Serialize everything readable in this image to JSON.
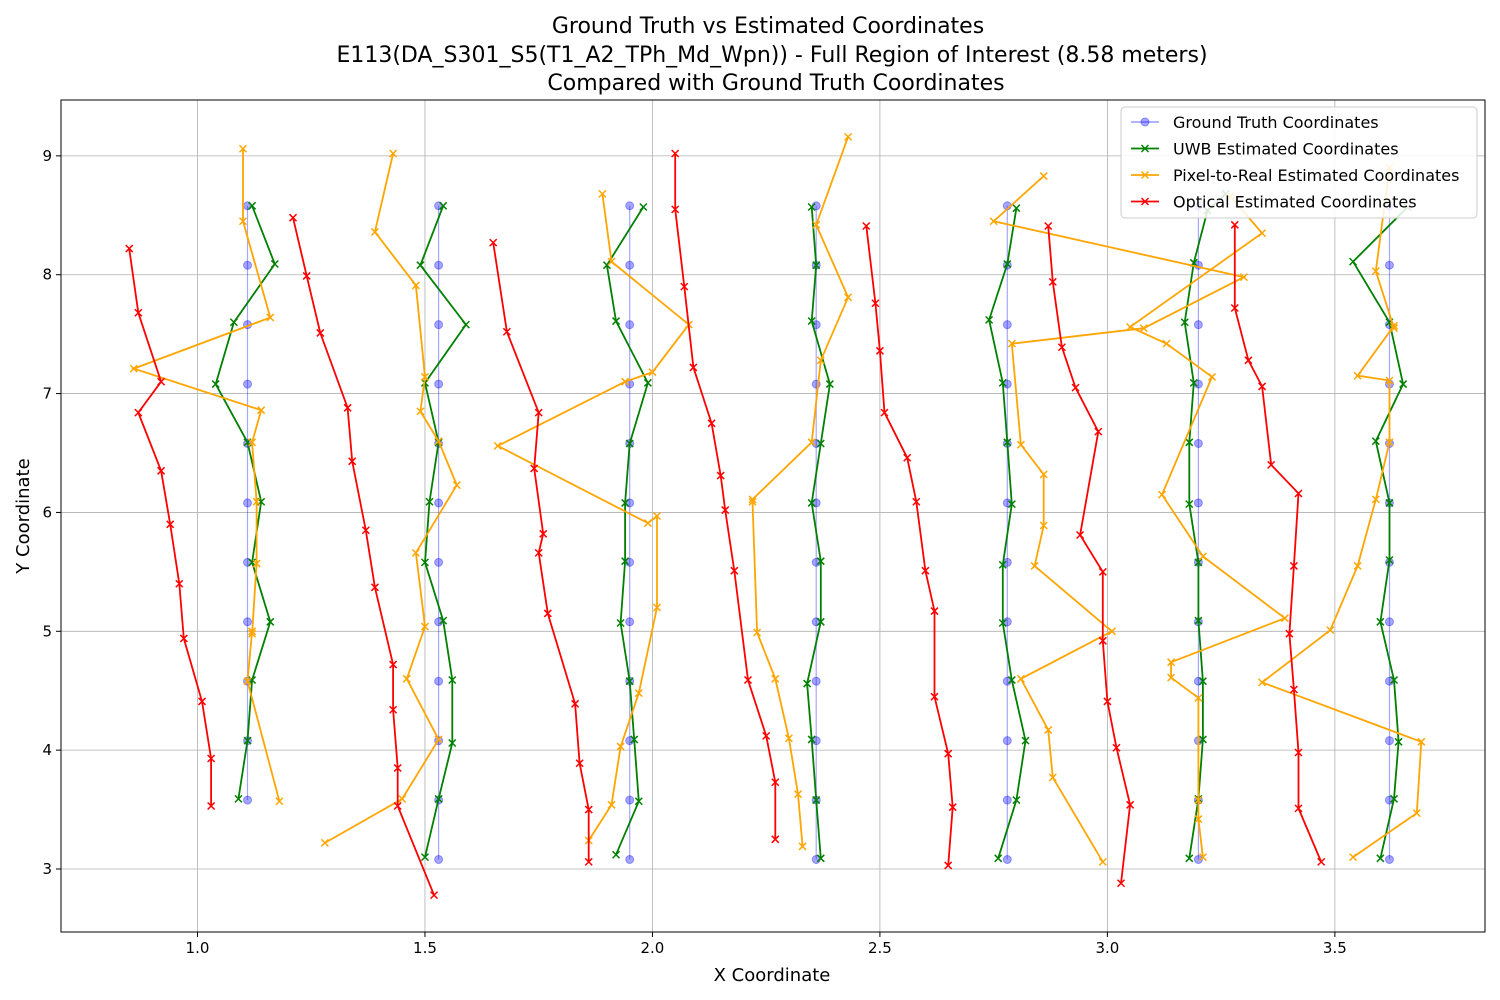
{
  "chart_data": {
    "type": "line",
    "title_lines": [
      "Ground Truth vs Estimated Coordinates",
      "E113(DA_S301_S5(T1_A2_TPh_Md_Wpn)) - Full Region of Interest (8.58 meters)",
      "Compared with Ground Truth Coordinates"
    ],
    "xlabel": "X Coordinate",
    "ylabel": "Y Coordinate",
    "xlim": [
      0.7,
      3.83
    ],
    "ylim": [
      2.47,
      9.47
    ],
    "xticks": [
      1.0,
      1.5,
      2.0,
      2.5,
      3.0,
      3.5
    ],
    "xtick_labels": [
      "1.0",
      "1.5",
      "2.0",
      "2.5",
      "3.0",
      "3.5"
    ],
    "yticks": [
      3,
      4,
      5,
      6,
      7,
      8,
      9
    ],
    "ytick_labels": [
      "3",
      "4",
      "5",
      "6",
      "7",
      "8",
      "9"
    ],
    "grid": true,
    "legend_position": "top-right",
    "series": [
      {
        "name": "Ground Truth Coordinates",
        "color": "#0000ff",
        "marker": "circle",
        "alpha": 0.35,
        "tracks": [
          {
            "x": [
              1.11,
              1.11,
              1.11,
              1.11,
              1.11,
              1.11,
              1.11,
              1.11,
              1.11,
              1.11,
              1.11
            ],
            "y": [
              3.58,
              4.08,
              4.58,
              5.08,
              5.58,
              6.08,
              6.58,
              7.08,
              7.58,
              8.08,
              8.58
            ]
          },
          {
            "x": [
              1.53,
              1.53,
              1.53,
              1.53,
              1.53,
              1.53,
              1.53,
              1.53,
              1.53,
              1.53,
              1.53,
              1.53
            ],
            "y": [
              3.08,
              3.58,
              4.08,
              4.58,
              5.08,
              5.58,
              6.08,
              6.58,
              7.08,
              7.58,
              8.08,
              8.58
            ]
          },
          {
            "x": [
              1.95,
              1.95,
              1.95,
              1.95,
              1.95,
              1.95,
              1.95,
              1.95,
              1.95,
              1.95,
              1.95,
              1.95
            ],
            "y": [
              3.08,
              3.58,
              4.08,
              4.58,
              5.08,
              5.58,
              6.08,
              6.58,
              7.08,
              7.58,
              8.08,
              8.58
            ]
          },
          {
            "x": [
              2.36,
              2.36,
              2.36,
              2.36,
              2.36,
              2.36,
              2.36,
              2.36,
              2.36,
              2.36,
              2.36,
              2.36
            ],
            "y": [
              3.08,
              3.58,
              4.08,
              4.58,
              5.08,
              5.58,
              6.08,
              6.58,
              7.08,
              7.58,
              8.08,
              8.58
            ]
          },
          {
            "x": [
              2.78,
              2.78,
              2.78,
              2.78,
              2.78,
              2.78,
              2.78,
              2.78,
              2.78,
              2.78,
              2.78,
              2.78
            ],
            "y": [
              3.08,
              3.58,
              4.08,
              4.58,
              5.08,
              5.58,
              6.08,
              6.58,
              7.08,
              7.58,
              8.08,
              8.58
            ]
          },
          {
            "x": [
              3.2,
              3.2,
              3.2,
              3.2,
              3.2,
              3.2,
              3.2,
              3.2,
              3.2,
              3.2,
              3.2,
              3.2
            ],
            "y": [
              3.08,
              3.58,
              4.08,
              4.58,
              5.08,
              5.58,
              6.08,
              6.58,
              7.08,
              7.58,
              8.08,
              8.58
            ]
          },
          {
            "x": [
              3.62,
              3.62,
              3.62,
              3.62,
              3.62,
              3.62,
              3.62,
              3.62,
              3.62,
              3.62,
              3.62,
              3.62
            ],
            "y": [
              3.08,
              3.58,
              4.08,
              4.58,
              5.08,
              5.58,
              6.08,
              6.58,
              7.08,
              7.58,
              8.08,
              8.58
            ]
          }
        ]
      },
      {
        "name": "UWB Estimated Coordinates",
        "color": "#008000",
        "marker": "x",
        "alpha": 1,
        "tracks": [
          {
            "x": [
              1.09,
              1.11,
              1.12,
              1.16,
              1.12,
              1.14,
              1.11,
              1.04,
              1.08,
              1.17,
              1.12
            ],
            "y": [
              3.59,
              4.08,
              4.59,
              5.08,
              5.58,
              6.09,
              6.59,
              7.08,
              7.6,
              8.09,
              8.58
            ]
          },
          {
            "x": [
              1.5,
              1.53,
              1.56,
              1.56,
              1.54,
              1.5,
              1.51,
              1.53,
              1.5,
              1.59,
              1.49,
              1.54
            ],
            "y": [
              3.1,
              3.59,
              4.06,
              4.59,
              5.09,
              5.58,
              6.09,
              6.59,
              7.09,
              7.58,
              8.08,
              8.58
            ]
          },
          {
            "x": [
              1.92,
              1.97,
              1.96,
              1.95,
              1.93,
              1.94,
              1.94,
              1.95,
              1.99,
              1.92,
              1.9,
              1.98
            ],
            "y": [
              3.12,
              3.57,
              4.09,
              4.58,
              5.07,
              5.59,
              6.08,
              6.58,
              7.09,
              7.61,
              8.08,
              8.57
            ]
          },
          {
            "x": [
              2.37,
              2.36,
              2.35,
              2.34,
              2.37,
              2.37,
              2.35,
              2.37,
              2.39,
              2.35,
              2.36,
              2.35
            ],
            "y": [
              3.09,
              3.58,
              4.09,
              4.56,
              5.08,
              5.59,
              6.08,
              6.58,
              7.08,
              7.61,
              8.08,
              8.57
            ]
          },
          {
            "x": [
              2.76,
              2.8,
              2.82,
              2.79,
              2.77,
              2.77,
              2.79,
              2.78,
              2.77,
              2.74,
              2.78,
              2.8
            ],
            "y": [
              3.09,
              3.58,
              4.08,
              4.59,
              5.07,
              5.56,
              6.07,
              6.59,
              7.09,
              7.62,
              8.09,
              8.56
            ]
          },
          {
            "x": [
              3.18,
              3.2,
              3.21,
              3.21,
              3.2,
              3.2,
              3.18,
              3.18,
              3.19,
              3.17,
              3.19,
              3.22,
              3.26
            ],
            "y": [
              3.09,
              3.59,
              4.09,
              4.58,
              5.09,
              5.58,
              6.07,
              6.59,
              7.09,
              7.6,
              8.1,
              8.54,
              8.68
            ]
          },
          {
            "x": [
              3.6,
              3.63,
              3.64,
              3.63,
              3.6,
              3.62,
              3.62,
              3.59,
              3.65,
              3.62,
              3.54,
              3.66
            ],
            "y": [
              3.09,
              3.59,
              4.07,
              4.59,
              5.08,
              5.6,
              6.08,
              6.6,
              7.08,
              7.6,
              8.11,
              8.57
            ]
          }
        ]
      },
      {
        "name": "Pixel-to-Real Estimated Coordinates",
        "color": "#ffa500",
        "marker": "x",
        "alpha": 1,
        "tracks": [
          {
            "x": [
              1.18,
              1.11,
              1.12,
              1.12,
              1.13,
              1.13,
              1.12,
              1.14,
              0.86,
              1.16,
              1.1,
              1.1
            ],
            "y": [
              3.57,
              4.58,
              5.0,
              4.98,
              5.57,
              6.09,
              6.59,
              6.86,
              7.21,
              7.64,
              8.45,
              9.06
            ]
          },
          {
            "x": [
              1.28,
              1.45,
              1.53,
              1.46,
              1.5,
              1.48,
              1.57,
              1.53,
              1.49,
              1.5,
              1.48,
              1.39,
              1.43
            ],
            "y": [
              3.22,
              3.59,
              4.09,
              4.6,
              5.04,
              5.66,
              6.23,
              6.6,
              6.85,
              7.14,
              7.91,
              8.36,
              9.02
            ]
          },
          {
            "x": [
              1.86,
              1.91,
              1.93,
              1.97,
              2.01,
              2.01,
              1.99,
              1.66,
              1.94,
              2.0,
              2.08,
              1.91,
              1.89
            ],
            "y": [
              3.24,
              3.54,
              4.03,
              4.48,
              5.2,
              5.97,
              5.91,
              6.56,
              7.1,
              7.18,
              7.58,
              8.11,
              8.68
            ]
          },
          {
            "x": [
              2.33,
              2.32,
              2.3,
              2.27,
              2.23,
              2.22,
              2.22,
              2.35,
              2.37,
              2.43,
              2.36,
              2.43
            ],
            "y": [
              3.19,
              3.63,
              4.1,
              4.6,
              4.99,
              6.09,
              6.11,
              6.59,
              7.28,
              7.81,
              8.42,
              9.16
            ]
          },
          {
            "x": [
              2.99,
              2.88,
              2.87,
              2.81,
              3.01,
              2.84,
              2.86,
              2.86,
              2.81,
              2.79,
              3.08,
              3.3,
              2.75,
              2.86
            ],
            "y": [
              3.06,
              3.77,
              4.17,
              4.6,
              5.0,
              5.55,
              5.89,
              6.32,
              6.57,
              7.42,
              7.55,
              7.98,
              8.45,
              8.83
            ]
          },
          {
            "x": [
              3.21,
              3.2,
              3.2,
              3.2,
              3.14,
              3.14,
              3.39,
              3.21,
              3.12,
              3.23,
              3.13,
              3.05,
              3.34,
              3.27
            ],
            "y": [
              3.1,
              3.42,
              3.58,
              4.44,
              4.61,
              4.74,
              5.11,
              5.63,
              6.15,
              7.14,
              7.42,
              7.56,
              8.35,
              8.66
            ]
          },
          {
            "x": [
              3.54,
              3.68,
              3.69,
              3.34,
              3.49,
              3.55,
              3.59,
              3.62,
              3.62,
              3.55,
              3.63,
              3.63,
              3.59,
              3.62
            ],
            "y": [
              3.1,
              3.47,
              4.07,
              4.57,
              5.01,
              5.55,
              6.11,
              6.59,
              7.11,
              7.15,
              7.57,
              7.55,
              8.03,
              8.9
            ]
          }
        ]
      },
      {
        "name": "Optical Estimated Coordinates",
        "color": "#ff0000",
        "marker": "x",
        "alpha": 1,
        "tracks": [
          {
            "x": [
              1.03,
              1.03,
              1.01,
              0.97,
              0.96,
              0.94,
              0.92,
              0.87,
              0.92,
              0.87,
              0.85
            ],
            "y": [
              3.53,
              3.93,
              4.41,
              4.94,
              5.4,
              5.9,
              6.35,
              6.84,
              7.1,
              7.68,
              8.22
            ]
          },
          {
            "x": [
              1.52,
              1.44,
              1.44,
              1.43,
              1.43,
              1.39,
              1.37,
              1.34,
              1.33,
              1.27,
              1.24,
              1.21
            ],
            "y": [
              2.78,
              3.53,
              3.85,
              4.34,
              4.72,
              5.37,
              5.85,
              6.43,
              6.88,
              7.51,
              7.99,
              8.48
            ]
          },
          {
            "x": [
              1.86,
              1.86,
              1.84,
              1.83,
              1.77,
              1.75,
              1.76,
              1.74,
              1.75,
              1.68,
              1.65
            ],
            "y": [
              3.06,
              3.5,
              3.89,
              4.39,
              5.15,
              5.66,
              5.82,
              6.37,
              6.84,
              7.52,
              8.27
            ]
          },
          {
            "x": [
              2.27,
              2.27,
              2.25,
              2.21,
              2.18,
              2.16,
              2.15,
              2.13,
              2.09,
              2.07,
              2.05,
              2.05
            ],
            "y": [
              3.25,
              3.73,
              4.12,
              4.59,
              5.51,
              6.02,
              6.31,
              6.75,
              7.22,
              7.9,
              8.55,
              9.02
            ]
          },
          {
            "x": [
              2.65,
              2.66,
              2.65,
              2.62,
              2.62,
              2.6,
              2.58,
              2.56,
              2.51,
              2.5,
              2.49,
              2.47
            ],
            "y": [
              3.03,
              3.52,
              3.97,
              4.45,
              5.17,
              5.51,
              6.09,
              6.46,
              6.84,
              7.36,
              7.76,
              8.41
            ]
          },
          {
            "x": [
              3.03,
              3.05,
              3.02,
              3.0,
              2.99,
              2.99,
              2.94,
              2.98,
              2.93,
              2.9,
              2.88,
              2.87
            ],
            "y": [
              2.88,
              3.54,
              4.02,
              4.41,
              4.92,
              5.5,
              5.81,
              6.68,
              7.05,
              7.39,
              7.94,
              8.41
            ]
          },
          {
            "x": [
              3.47,
              3.42,
              3.42,
              3.41,
              3.4,
              3.41,
              3.42,
              3.36,
              3.34,
              3.31,
              3.28,
              3.28
            ],
            "y": [
              3.06,
              3.51,
              3.98,
              4.51,
              4.98,
              5.55,
              6.16,
              6.4,
              7.06,
              7.28,
              7.72,
              8.42
            ]
          }
        ]
      }
    ]
  }
}
